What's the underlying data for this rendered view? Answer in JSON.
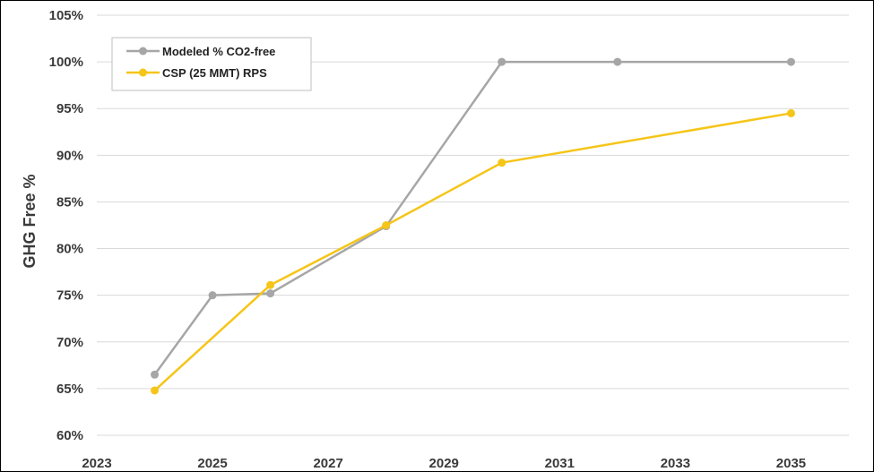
{
  "chart_data": {
    "type": "line",
    "title": "",
    "xlabel": "",
    "ylabel": "GHG Free %",
    "xlim": [
      2023,
      2036
    ],
    "ylim": [
      60,
      105
    ],
    "x_ticks": [
      "2023",
      "2025",
      "2027",
      "2029",
      "2031",
      "2033",
      "2035"
    ],
    "y_ticks": [
      "60%",
      "65%",
      "70%",
      "75%",
      "80%",
      "85%",
      "90%",
      "95%",
      "100%",
      "105%"
    ],
    "grid": "horizontal",
    "legend_position": "top-left",
    "series": [
      {
        "name": "Modeled % CO2-free",
        "color": "#a6a6a6",
        "points": [
          [
            2024,
            66.5
          ],
          [
            2025,
            75.0
          ],
          [
            2026,
            75.2
          ],
          [
            2028,
            82.4
          ],
          [
            2030,
            100.0
          ],
          [
            2032,
            100.0
          ],
          [
            2035,
            100.0
          ]
        ]
      },
      {
        "name": "CSP (25 MMT) RPS",
        "color": "#f5c518",
        "points": [
          [
            2024,
            64.8
          ],
          [
            2026,
            76.1
          ],
          [
            2028,
            82.5
          ],
          [
            2030,
            89.2
          ],
          [
            2035,
            94.5
          ]
        ]
      }
    ]
  }
}
